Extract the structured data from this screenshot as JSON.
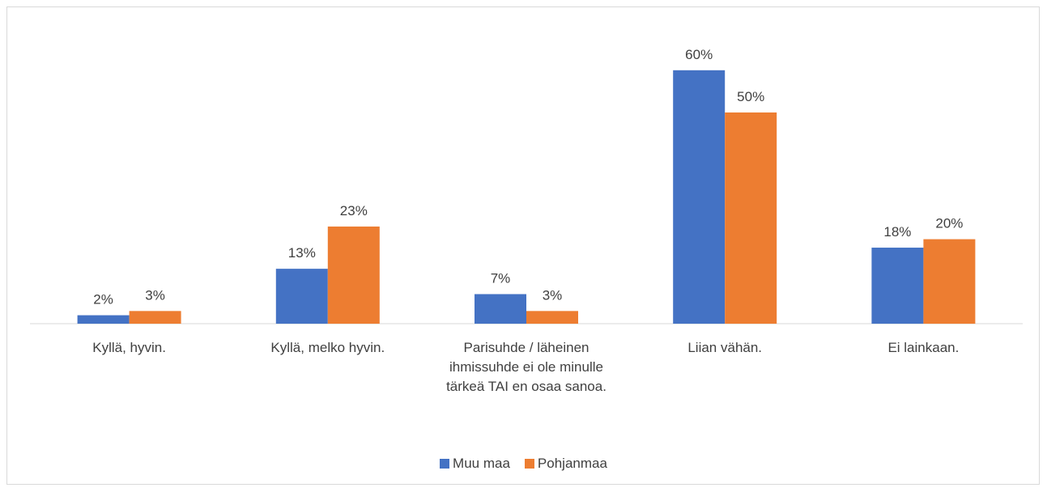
{
  "chart_data": {
    "type": "bar",
    "categories": [
      "Kyllä, hyvin.",
      "Kyllä, melko hyvin.",
      "Parisuhde / läheinen ihmissuhde ei ole minulle tärkeä TAI en osaa sanoa.",
      "Liian vähän.",
      "Ei lainkaan."
    ],
    "series": [
      {
        "name": "Muu maa",
        "color": "#4472c4",
        "values": [
          2,
          13,
          7,
          60,
          18
        ],
        "value_labels": [
          "2%",
          "13%",
          "7%",
          "60%",
          "18%"
        ]
      },
      {
        "name": "Pohjanmaa",
        "color": "#ed7d31",
        "values": [
          3,
          23,
          3,
          50,
          20
        ],
        "value_labels": [
          "3%",
          "23%",
          "3%",
          "50%",
          "20%"
        ]
      }
    ],
    "legend": "bottom"
  }
}
